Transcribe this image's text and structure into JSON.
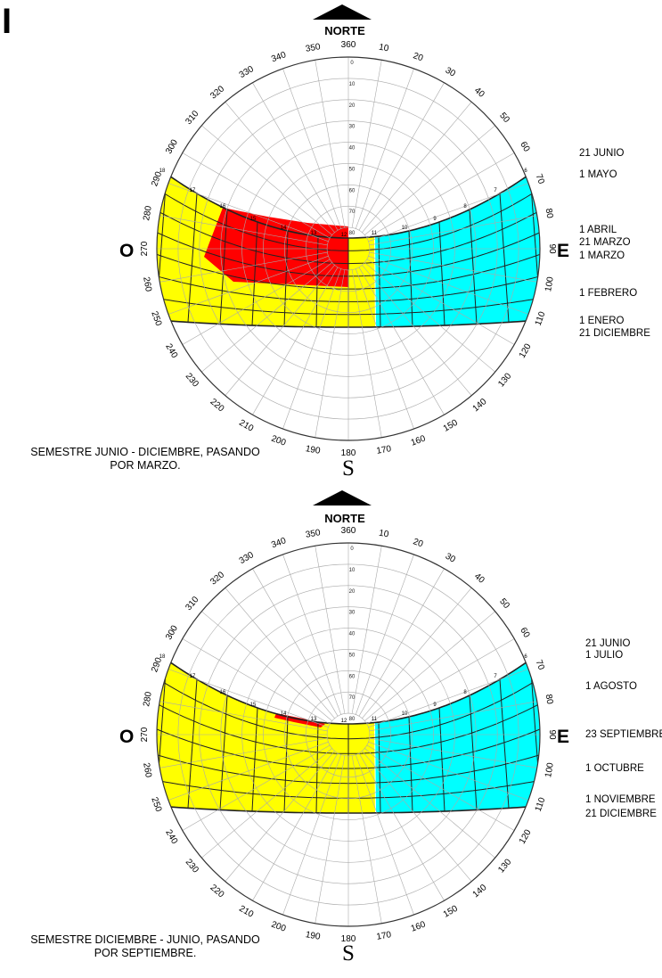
{
  "corner_label": "I",
  "diagrams": [
    {
      "north_label": "NORTE",
      "west_label": "O",
      "east_label": "E",
      "south_label": "S",
      "caption_lines": [
        "SEMESTRE JUNIO - DICIEMBRE, PASANDO",
        "POR MARZO."
      ],
      "date_labels": [
        "21 JUNIO",
        "1 MAYO",
        "1 ABRIL",
        "21 MARZO",
        "1 MARZO",
        "1 FEBRERO",
        "1 ENERO",
        "21 DICIEMBRE"
      ],
      "regions": {
        "morning": "#ffff00",
        "afternoon": "#00ffff",
        "shaded": "#ff0000"
      }
    },
    {
      "north_label": "NORTE",
      "west_label": "O",
      "east_label": "E",
      "south_label": "S",
      "caption_lines": [
        "SEMESTRE DICIEMBRE - JUNIO, PASANDO",
        "POR SEPTIEMBRE."
      ],
      "date_labels": [
        "21 JUNIO",
        "1 JULIO",
        "1 AGOSTO",
        "23 SEPTIEMBRE",
        "1 OCTUBRE",
        "1 NOVIEMBRE",
        "21 DICIEMBRE"
      ],
      "regions": {
        "morning": "#ffff00",
        "afternoon": "#00ffff",
        "shaded": "#ff0000"
      }
    }
  ],
  "azimuth_labels": [
    "360",
    "10",
    "20",
    "30",
    "40",
    "50",
    "60",
    "70",
    "80",
    "90",
    "100",
    "110",
    "120",
    "130",
    "140",
    "150",
    "160",
    "170",
    "180",
    "190",
    "200",
    "210",
    "220",
    "230",
    "240",
    "250",
    "260",
    "270",
    "280",
    "290",
    "300",
    "310",
    "320",
    "330",
    "340",
    "350"
  ],
  "altitude_labels": [
    "0",
    "10",
    "20",
    "30",
    "40",
    "50",
    "60",
    "70",
    "80"
  ],
  "hour_labels": [
    "6",
    "7",
    "8",
    "9",
    "10",
    "11",
    "12",
    "13",
    "14",
    "15",
    "16",
    "17",
    "18"
  ]
}
